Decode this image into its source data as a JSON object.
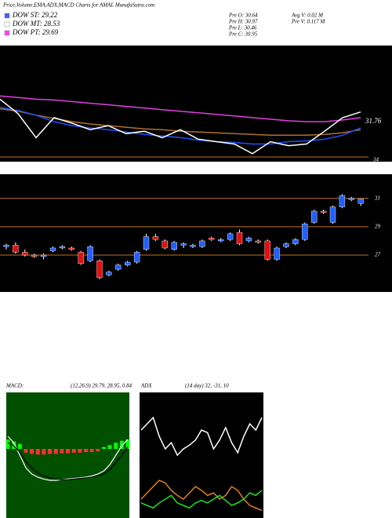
{
  "header": "Price,Volume,EMA,ADX,MACD Charts for AMAL MunafaSutra.com",
  "legend": [
    {
      "label": "DOW ST: 29.22",
      "color": "#4060ff"
    },
    {
      "label": "DOW MT: 28.53",
      "color": "#ffffff"
    },
    {
      "label": "DOW PT: 29.69",
      "color": "#ff40ff"
    }
  ],
  "stats": [
    "Pre O: 30.64",
    "Pre H: 30.97",
    "Pre L: 30.46",
    "Pre C: 30.95"
  ],
  "volume": [
    "Avg V: 0.02 M",
    "Pre V: 0.117 M"
  ],
  "chart_data": [
    {
      "type": "line",
      "annotations": [
        "31.76",
        "34"
      ],
      "ylim": [
        0,
        145
      ],
      "series": [
        {
          "color": "#e040e0",
          "values": [
            82,
            80,
            78,
            77,
            75,
            73,
            71,
            69,
            67,
            65,
            63,
            61,
            59,
            57,
            55,
            53,
            51,
            50,
            50,
            52,
            55
          ]
        },
        {
          "color": "#b07030",
          "values": [
            66,
            63,
            58,
            54,
            50,
            47,
            45,
            43,
            41,
            40,
            38,
            37,
            36,
            35,
            34,
            33,
            33,
            33,
            34,
            36,
            40
          ]
        },
        {
          "color": "#2050ff",
          "values": [
            68,
            64,
            58,
            50,
            45,
            42,
            40,
            37,
            34,
            32,
            30,
            27,
            25,
            24,
            22,
            22,
            25,
            26,
            28,
            33,
            42
          ]
        },
        {
          "color": "#ffffff",
          "values": [
            78,
            60,
            30,
            55,
            48,
            40,
            45,
            35,
            38,
            30,
            40,
            28,
            25,
            22,
            10,
            25,
            20,
            22,
            38,
            55,
            62
          ]
        }
      ]
    },
    {
      "type": "candlestick",
      "ylim": [
        24.4,
        32.7
      ],
      "yticks": [
        31,
        29,
        27
      ],
      "up_color": "#2060ff",
      "down_color": "#e01010",
      "open": [
        27.6,
        27.7,
        27.2,
        27.0,
        26.9,
        27.3,
        27.5,
        27.5,
        27.2,
        26.6,
        26.6,
        25.6,
        26.0,
        26.3,
        26.5,
        27.4,
        28.3,
        28.0,
        27.4,
        27.7,
        27.6,
        27.6,
        28.2,
        28.0,
        28.1,
        28.6,
        28.0,
        28.0,
        28.0,
        26.7,
        27.6,
        27.8,
        28.1,
        29.3,
        30.1,
        29.3,
        30.4,
        30.9,
        30.64
      ],
      "high": [
        27.8,
        27.9,
        27.4,
        27.1,
        27.1,
        27.6,
        27.7,
        27.6,
        27.3,
        27.7,
        26.7,
        25.9,
        26.4,
        26.6,
        27.3,
        28.5,
        28.5,
        28.1,
        28.0,
        27.9,
        27.8,
        28.1,
        28.3,
        28.2,
        28.6,
        28.8,
        28.3,
        28.1,
        28.1,
        27.6,
        27.9,
        28.2,
        29.3,
        30.2,
        30.2,
        30.5,
        31.3,
        31.1,
        30.97
      ],
      "low": [
        27.4,
        27.1,
        26.9,
        26.8,
        26.7,
        27.2,
        27.4,
        27.3,
        26.3,
        26.5,
        25.3,
        25.5,
        25.9,
        26.2,
        26.4,
        27.3,
        28.0,
        27.4,
        27.3,
        27.5,
        27.5,
        27.5,
        28.0,
        27.9,
        28.0,
        27.7,
        27.9,
        27.8,
        26.6,
        26.6,
        27.5,
        27.7,
        28.0,
        29.2,
        29.9,
        29.2,
        30.3,
        30.8,
        30.46
      ],
      "close": [
        27.7,
        27.2,
        27.0,
        26.9,
        27.0,
        27.5,
        27.6,
        27.4,
        26.4,
        27.6,
        25.4,
        25.8,
        26.3,
        26.5,
        27.2,
        28.3,
        28.1,
        27.5,
        27.9,
        27.8,
        27.7,
        28.0,
        28.1,
        28.1,
        28.5,
        27.8,
        28.2,
        27.9,
        26.7,
        27.5,
        27.8,
        28.1,
        29.2,
        30.1,
        30.0,
        30.4,
        31.2,
        31.0,
        30.95
      ]
    },
    {
      "type": "macd",
      "title": "MACD:",
      "subtitle": "(12,26,9) 29.79, 28.95, 0.84",
      "ylim": [
        -11,
        9
      ],
      "pos_color": "#00ff00",
      "neg_color": "#ff3030",
      "series": [
        {
          "color": "#ffffff",
          "values": [
            2,
            1,
            -1,
            -3,
            -4,
            -4.5,
            -4.8,
            -5,
            -5,
            -4.9,
            -4.8,
            -4.7,
            -4.6,
            -4.5,
            -4.3,
            -4,
            -3.5,
            -2.5,
            -1,
            0.5,
            1.5
          ]
        },
        {
          "color": "#000000",
          "values": [
            1,
            0.5,
            -0.5,
            -2,
            -3,
            -3.8,
            -4.3,
            -4.6,
            -4.8,
            -4.9,
            -4.9,
            -4.8,
            -4.7,
            -4.6,
            -4.5,
            -4.3,
            -4,
            -3.3,
            -2.2,
            -1,
            0.3
          ]
        }
      ],
      "histogram": [
        1.5,
        1.2,
        0.8,
        -0.6,
        -0.8,
        -0.9,
        -0.9,
        -0.8,
        -0.8,
        -0.7,
        -0.7,
        -0.6,
        -0.6,
        -0.5,
        -0.5,
        -0.4,
        0.3,
        0.6,
        1.0,
        1.3,
        1.5
      ]
    },
    {
      "type": "adx",
      "title": "ADX",
      "subtitle": "(14 day) 32, -31, 10",
      "ylim": [
        0,
        100
      ],
      "series": [
        {
          "color": "#ffffff",
          "values": [
            70,
            75,
            80,
            65,
            55,
            60,
            50,
            55,
            58,
            62,
            70,
            68,
            55,
            62,
            72,
            60,
            52,
            65,
            75,
            70,
            80
          ]
        },
        {
          "color": "#e08020",
          "values": [
            15,
            20,
            25,
            30,
            28,
            22,
            18,
            15,
            20,
            25,
            22,
            18,
            20,
            15,
            18,
            25,
            22,
            15,
            10,
            8,
            6
          ]
        },
        {
          "color": "#20e020",
          "values": [
            12,
            10,
            8,
            12,
            15,
            18,
            12,
            10,
            8,
            12,
            14,
            12,
            15,
            18,
            14,
            10,
            12,
            15,
            20,
            18,
            22
          ]
        }
      ]
    }
  ]
}
